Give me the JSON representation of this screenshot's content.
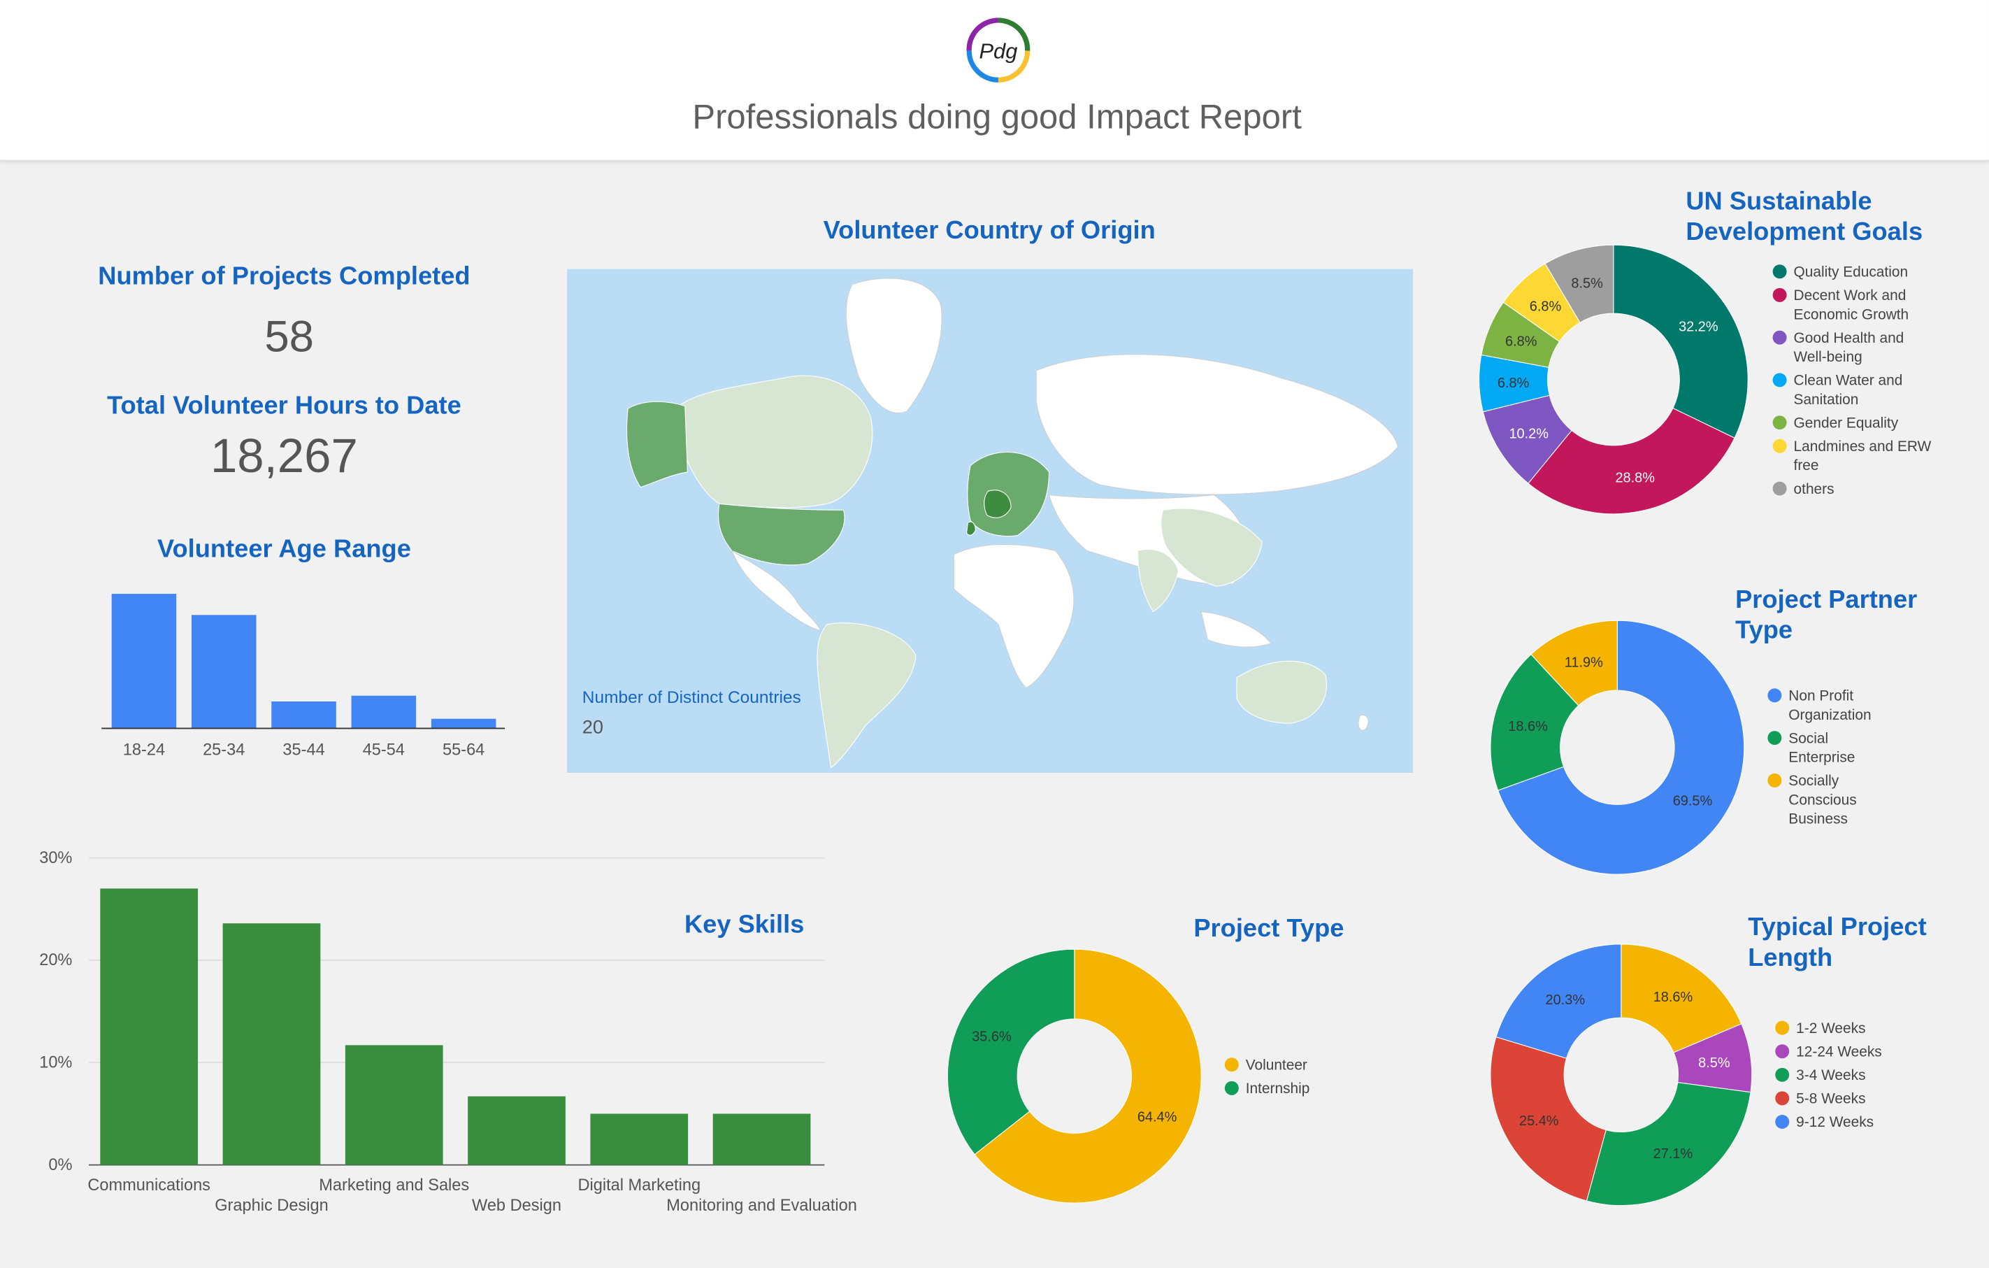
{
  "header": {
    "logo_text": "Pdg",
    "title": "Professionals doing good Impact Report"
  },
  "kpis": {
    "projects": {
      "title": "Number of Projects Completed",
      "value": "58"
    },
    "hours": {
      "title": "Total Volunteer Hours to Date",
      "value": "18,267"
    }
  },
  "map": {
    "title": "Volunteer Country of Origin",
    "distinct_label": "Number of Distinct Countries",
    "distinct_value": "20",
    "colors": {
      "ocean": "#bbdcf5",
      "land": "#ffffff",
      "low": "#d7e6d2",
      "high": "#6aaa6d",
      "top": "#3d8c40"
    }
  },
  "chart_data": [
    {
      "id": "age",
      "type": "bar",
      "title": "Volunteer Age Range",
      "categories": [
        "18-24",
        "25-34",
        "35-44",
        "45-54",
        "55-64"
      ],
      "values": [
        35,
        29.5,
        7,
        8.5,
        2.5
      ],
      "color": "#4285f4"
    },
    {
      "id": "skills",
      "type": "bar",
      "title": "Key Skills",
      "categories": [
        "Communications",
        "Graphic Design",
        "Marketing and Sales",
        "Web Design",
        "Digital Marketing",
        "Monitoring and Evaluation"
      ],
      "values": [
        27,
        23.6,
        11.7,
        6.7,
        5,
        5
      ],
      "ylim": [
        0,
        30
      ],
      "yticks": [
        "0%",
        "10%",
        "20%",
        "30%"
      ],
      "color": "#388e3c"
    },
    {
      "id": "sdg",
      "type": "pie",
      "title": "UN Sustainable Development Goals",
      "slices": [
        {
          "label": "Quality Education",
          "value": 32.2,
          "text": "32.2%",
          "color": "#00796b",
          "label_color": "#ffffff"
        },
        {
          "label": "Decent Work and Economic Growth",
          "value": 28.8,
          "text": "28.8%",
          "color": "#c2185b",
          "label_color": "#ffffff"
        },
        {
          "label": "Good Health and Well-being",
          "value": 10.2,
          "text": "10.2%",
          "color": "#7e57c2",
          "label_color": "#ffffff"
        },
        {
          "label": "Clean Water and Sanitation",
          "value": 6.8,
          "text": "6.8%",
          "color": "#03a9f4",
          "label_color": "#333333"
        },
        {
          "label": "Gender Equality",
          "value": 6.8,
          "text": "6.8%",
          "color": "#7cb342",
          "label_color": "#333333"
        },
        {
          "label": "Landmines and ERW free",
          "value": 6.8,
          "text": "6.8%",
          "color": "#fdd835",
          "label_color": "#333333"
        },
        {
          "label": "others",
          "value": 8.5,
          "text": "8.5%",
          "color": "#9e9e9e",
          "label_color": "#333333"
        }
      ]
    },
    {
      "id": "partner",
      "type": "pie",
      "title": "Project Partner Type",
      "slices": [
        {
          "label": "Non Profit Organization",
          "value": 69.5,
          "text": "69.5%",
          "color": "#4285f4",
          "label_color": "#333333"
        },
        {
          "label": "Social Enterprise",
          "value": 18.6,
          "text": "18.6%",
          "color": "#0f9d58",
          "label_color": "#333333"
        },
        {
          "label": "Socially Conscious Business",
          "value": 11.9,
          "text": "11.9%",
          "color": "#f4b400",
          "label_color": "#333333"
        }
      ]
    },
    {
      "id": "ptype",
      "type": "pie",
      "title": "Project Type",
      "slices": [
        {
          "label": "Volunteer",
          "value": 64.4,
          "text": "64.4%",
          "color": "#f4b400",
          "label_color": "#333333"
        },
        {
          "label": "Internship",
          "value": 35.6,
          "text": "35.6%",
          "color": "#0f9d58",
          "label_color": "#333333"
        }
      ]
    },
    {
      "id": "length",
      "type": "pie",
      "title": "Typical Project Length",
      "slices": [
        {
          "label": "1-2 Weeks",
          "value": 18.6,
          "text": "18.6%",
          "color": "#f4b400",
          "label_color": "#333333"
        },
        {
          "label": "12-24 Weeks",
          "value": 8.5,
          "text": "8.5%",
          "color": "#ab47bc",
          "label_color": "#ffffff"
        },
        {
          "label": "3-4 Weeks",
          "value": 27.1,
          "text": "27.1%",
          "color": "#0f9d58",
          "label_color": "#333333"
        },
        {
          "label": "5-8 Weeks",
          "value": 25.4,
          "text": "25.4%",
          "color": "#db4437",
          "label_color": "#333333"
        },
        {
          "label": "9-12 Weeks",
          "value": 20.3,
          "text": "20.3%",
          "color": "#4285f4",
          "label_color": "#333333"
        }
      ]
    }
  ]
}
